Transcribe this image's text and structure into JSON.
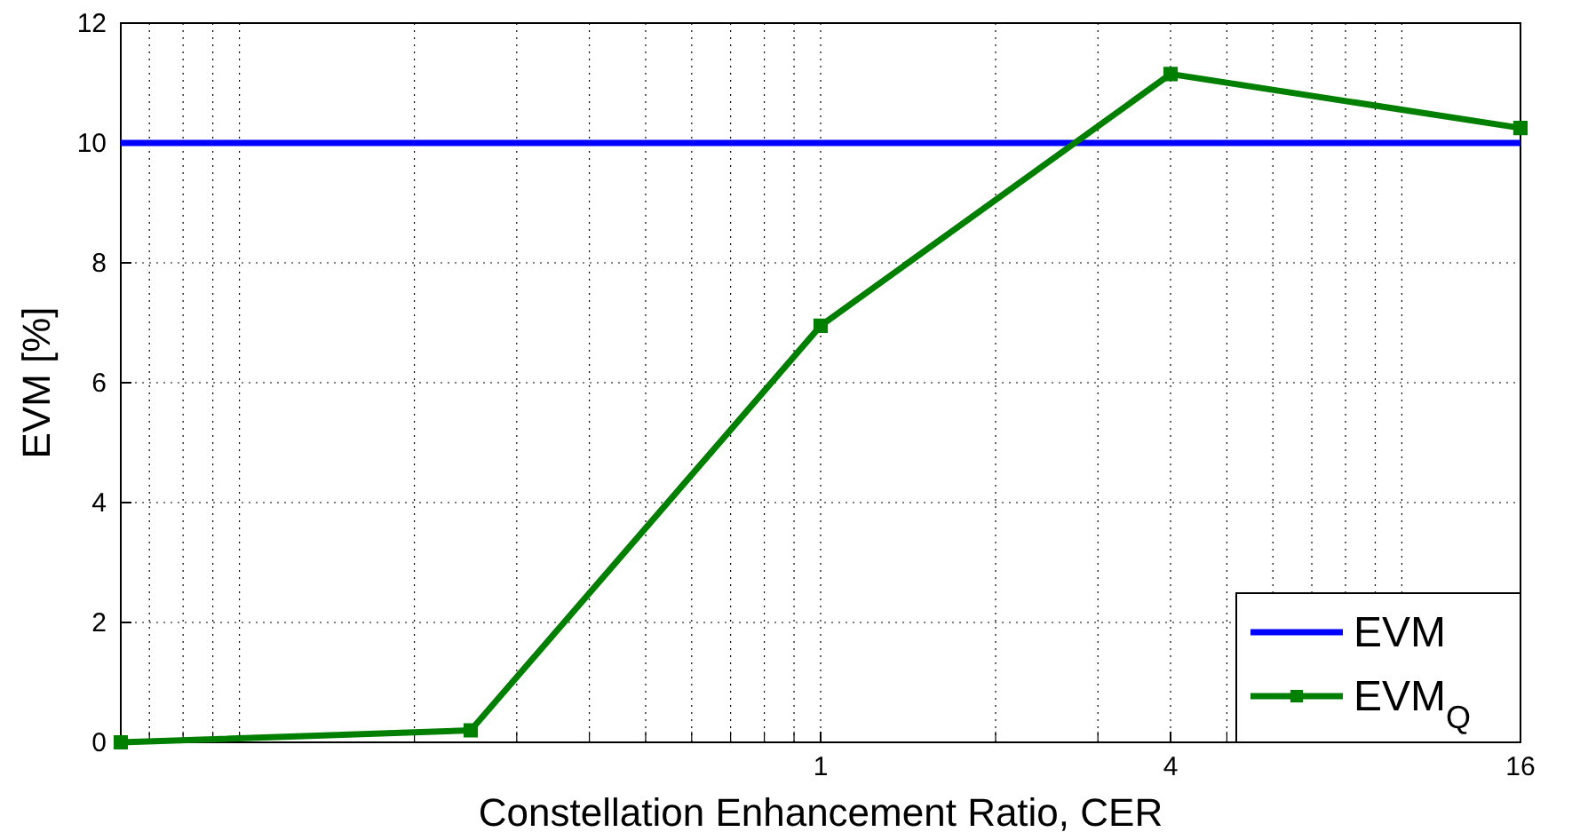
{
  "chart_data": {
    "type": "line",
    "xlabel": "Constellation Enhancement Ratio, CER",
    "ylabel": "EVM [%]",
    "log": "x",
    "xlim": [
      0.0625,
      16
    ],
    "ylim": [
      0,
      12
    ],
    "xticks": [
      {
        "value": 0.07,
        "label": null
      },
      {
        "value": 0.08,
        "label": null
      },
      {
        "value": 0.09,
        "label": null
      },
      {
        "value": 0.1,
        "label": null
      },
      {
        "value": 0.2,
        "label": null
      },
      {
        "value": 0.3,
        "label": null
      },
      {
        "value": 0.4,
        "label": null
      },
      {
        "value": 0.5,
        "label": null
      },
      {
        "value": 0.6,
        "label": null
      },
      {
        "value": 0.7,
        "label": null
      },
      {
        "value": 0.8,
        "label": null
      },
      {
        "value": 0.9,
        "label": null
      },
      1,
      {
        "value": 2,
        "label": null
      },
      {
        "value": 3,
        "label": null
      },
      4,
      {
        "value": 5,
        "label": null
      },
      {
        "value": 6,
        "label": null
      },
      {
        "value": 7,
        "label": null
      },
      {
        "value": 8,
        "label": null
      },
      {
        "value": 9,
        "label": null
      },
      {
        "value": 10,
        "label": null
      },
      16
    ],
    "yticks": [
      0,
      2,
      4,
      6,
      8,
      10,
      12
    ],
    "grid": true,
    "legend": "bottom right",
    "series": [
      {
        "name": "EVM",
        "color": "#0000ff",
        "x": [
          0.0625,
          16
        ],
        "values": [
          10,
          10
        ],
        "marker": "none"
      },
      {
        "name": "EVM$_{Q}$",
        "color": "#007f00",
        "x": [
          0.0625,
          0.25,
          1,
          4,
          16
        ],
        "values": [
          0,
          0.2,
          6.95,
          11.15,
          10.25
        ],
        "marker": "square"
      }
    ]
  }
}
